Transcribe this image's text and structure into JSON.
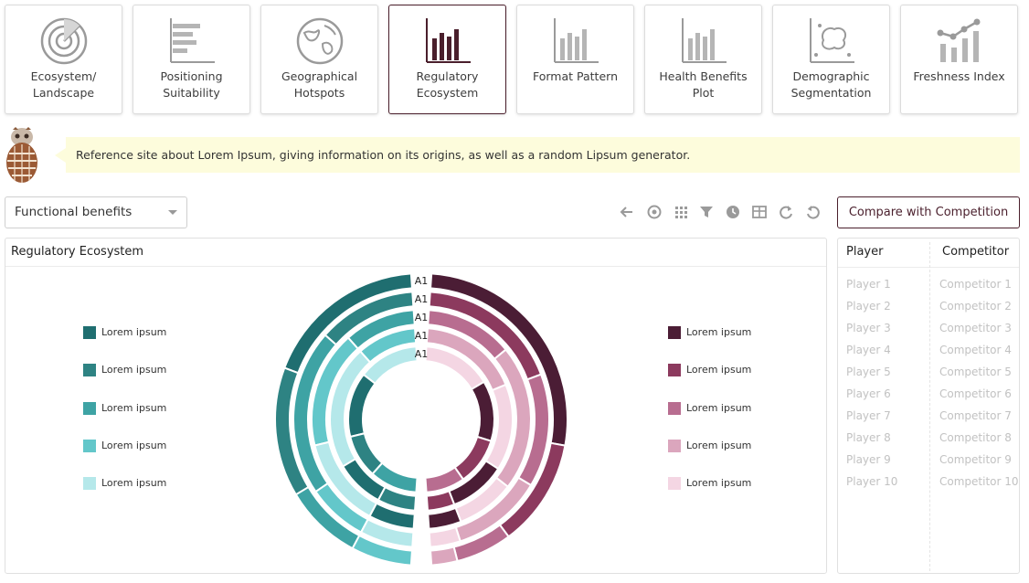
{
  "tiles": [
    {
      "label": "Ecosystem/ Landscape",
      "icon": "radar-icon",
      "active": false
    },
    {
      "label": "Positioning Suitability",
      "icon": "horizontal-bar-chart-icon",
      "active": false
    },
    {
      "label": "Geographical Hotspots",
      "icon": "globe-icon",
      "active": false
    },
    {
      "label": "Regulatory Ecosystem",
      "icon": "bar-chart-icon",
      "active": true
    },
    {
      "label": "Format Pattern",
      "icon": "bar-chart-icon",
      "active": false
    },
    {
      "label": "Health Benefits Plot",
      "icon": "bar-chart-icon",
      "active": false
    },
    {
      "label": "Demographic Segmentation",
      "icon": "scatter-brain-icon",
      "active": false
    },
    {
      "label": "Freshness Index",
      "icon": "line-bar-chart-icon",
      "active": false
    }
  ],
  "banner": {
    "text": "Reference site about Lorem Ipsum, giving information on its origins, as well as a random Lipsum generator."
  },
  "filter": {
    "selected": "Functional benefits"
  },
  "toolbar": {
    "icons": [
      "back-arrow-icon",
      "target-icon",
      "grid-icon",
      "filter-icon",
      "clock-icon",
      "table-icon",
      "redo-icon",
      "undo-icon"
    ]
  },
  "compare_button": {
    "label": "Compare with Competition"
  },
  "panel": {
    "title": "Regulatory Ecosystem"
  },
  "colors": {
    "teal": [
      "#1f6e70",
      "#2e8383",
      "#3ea3a4",
      "#63c7ca",
      "#b5e8ea"
    ],
    "plum": [
      "#4b1d35",
      "#8c3a5e",
      "#b86d90",
      "#dba6bd",
      "#f4d6e3"
    ],
    "accent": "#4a1f2c",
    "banner": "#fdfcdc"
  },
  "chart_data": {
    "type": "donut-rings",
    "ring_labels": [
      "A1",
      "A1",
      "A1",
      "A1",
      "A1"
    ],
    "left_legend": [
      "Lorem ipsum",
      "Lorem ipsum",
      "Lorem ipsum",
      "Lorem ipsum",
      "Lorem ipsum"
    ],
    "right_legend": [
      "Lorem ipsum",
      "Lorem ipsum",
      "Lorem ipsum",
      "Lorem ipsum",
      "Lorem ipsum"
    ],
    "left_rings": [
      [
        0.38,
        0.3,
        0.18,
        0.14
      ],
      [
        0.26,
        0.44,
        0.16,
        0.14
      ],
      [
        0.22,
        0.36,
        0.28,
        0.14
      ],
      [
        0.22,
        0.46,
        0.18,
        0.14
      ],
      [
        0.28,
        0.3,
        0.2,
        0.22
      ]
    ],
    "right_rings": [
      [
        0.56,
        0.25,
        0.13,
        0.06
      ],
      [
        0.38,
        0.3,
        0.24,
        0.08
      ],
      [
        0.27,
        0.45,
        0.18,
        0.1
      ],
      [
        0.37,
        0.32,
        0.21,
        0.1
      ],
      [
        0.32,
        0.28,
        0.22,
        0.18
      ]
    ]
  },
  "side": {
    "headers": {
      "player": "Player",
      "competitor": "Competitor"
    },
    "players": [
      "Player 1",
      "Player 2",
      "Player 3",
      "Player 4",
      "Player 5",
      "Player 6",
      "Player 7",
      "Player 8",
      "Player 9",
      "Player 10"
    ],
    "competitors": [
      "Competitor 1",
      "Competitor 2",
      "Competitor 3",
      "Competitor 4",
      "Competitor 5",
      "Competitor 6",
      "Competitor 7",
      "Competitor 8",
      "Competitor 9",
      "Competitor 10"
    ]
  }
}
